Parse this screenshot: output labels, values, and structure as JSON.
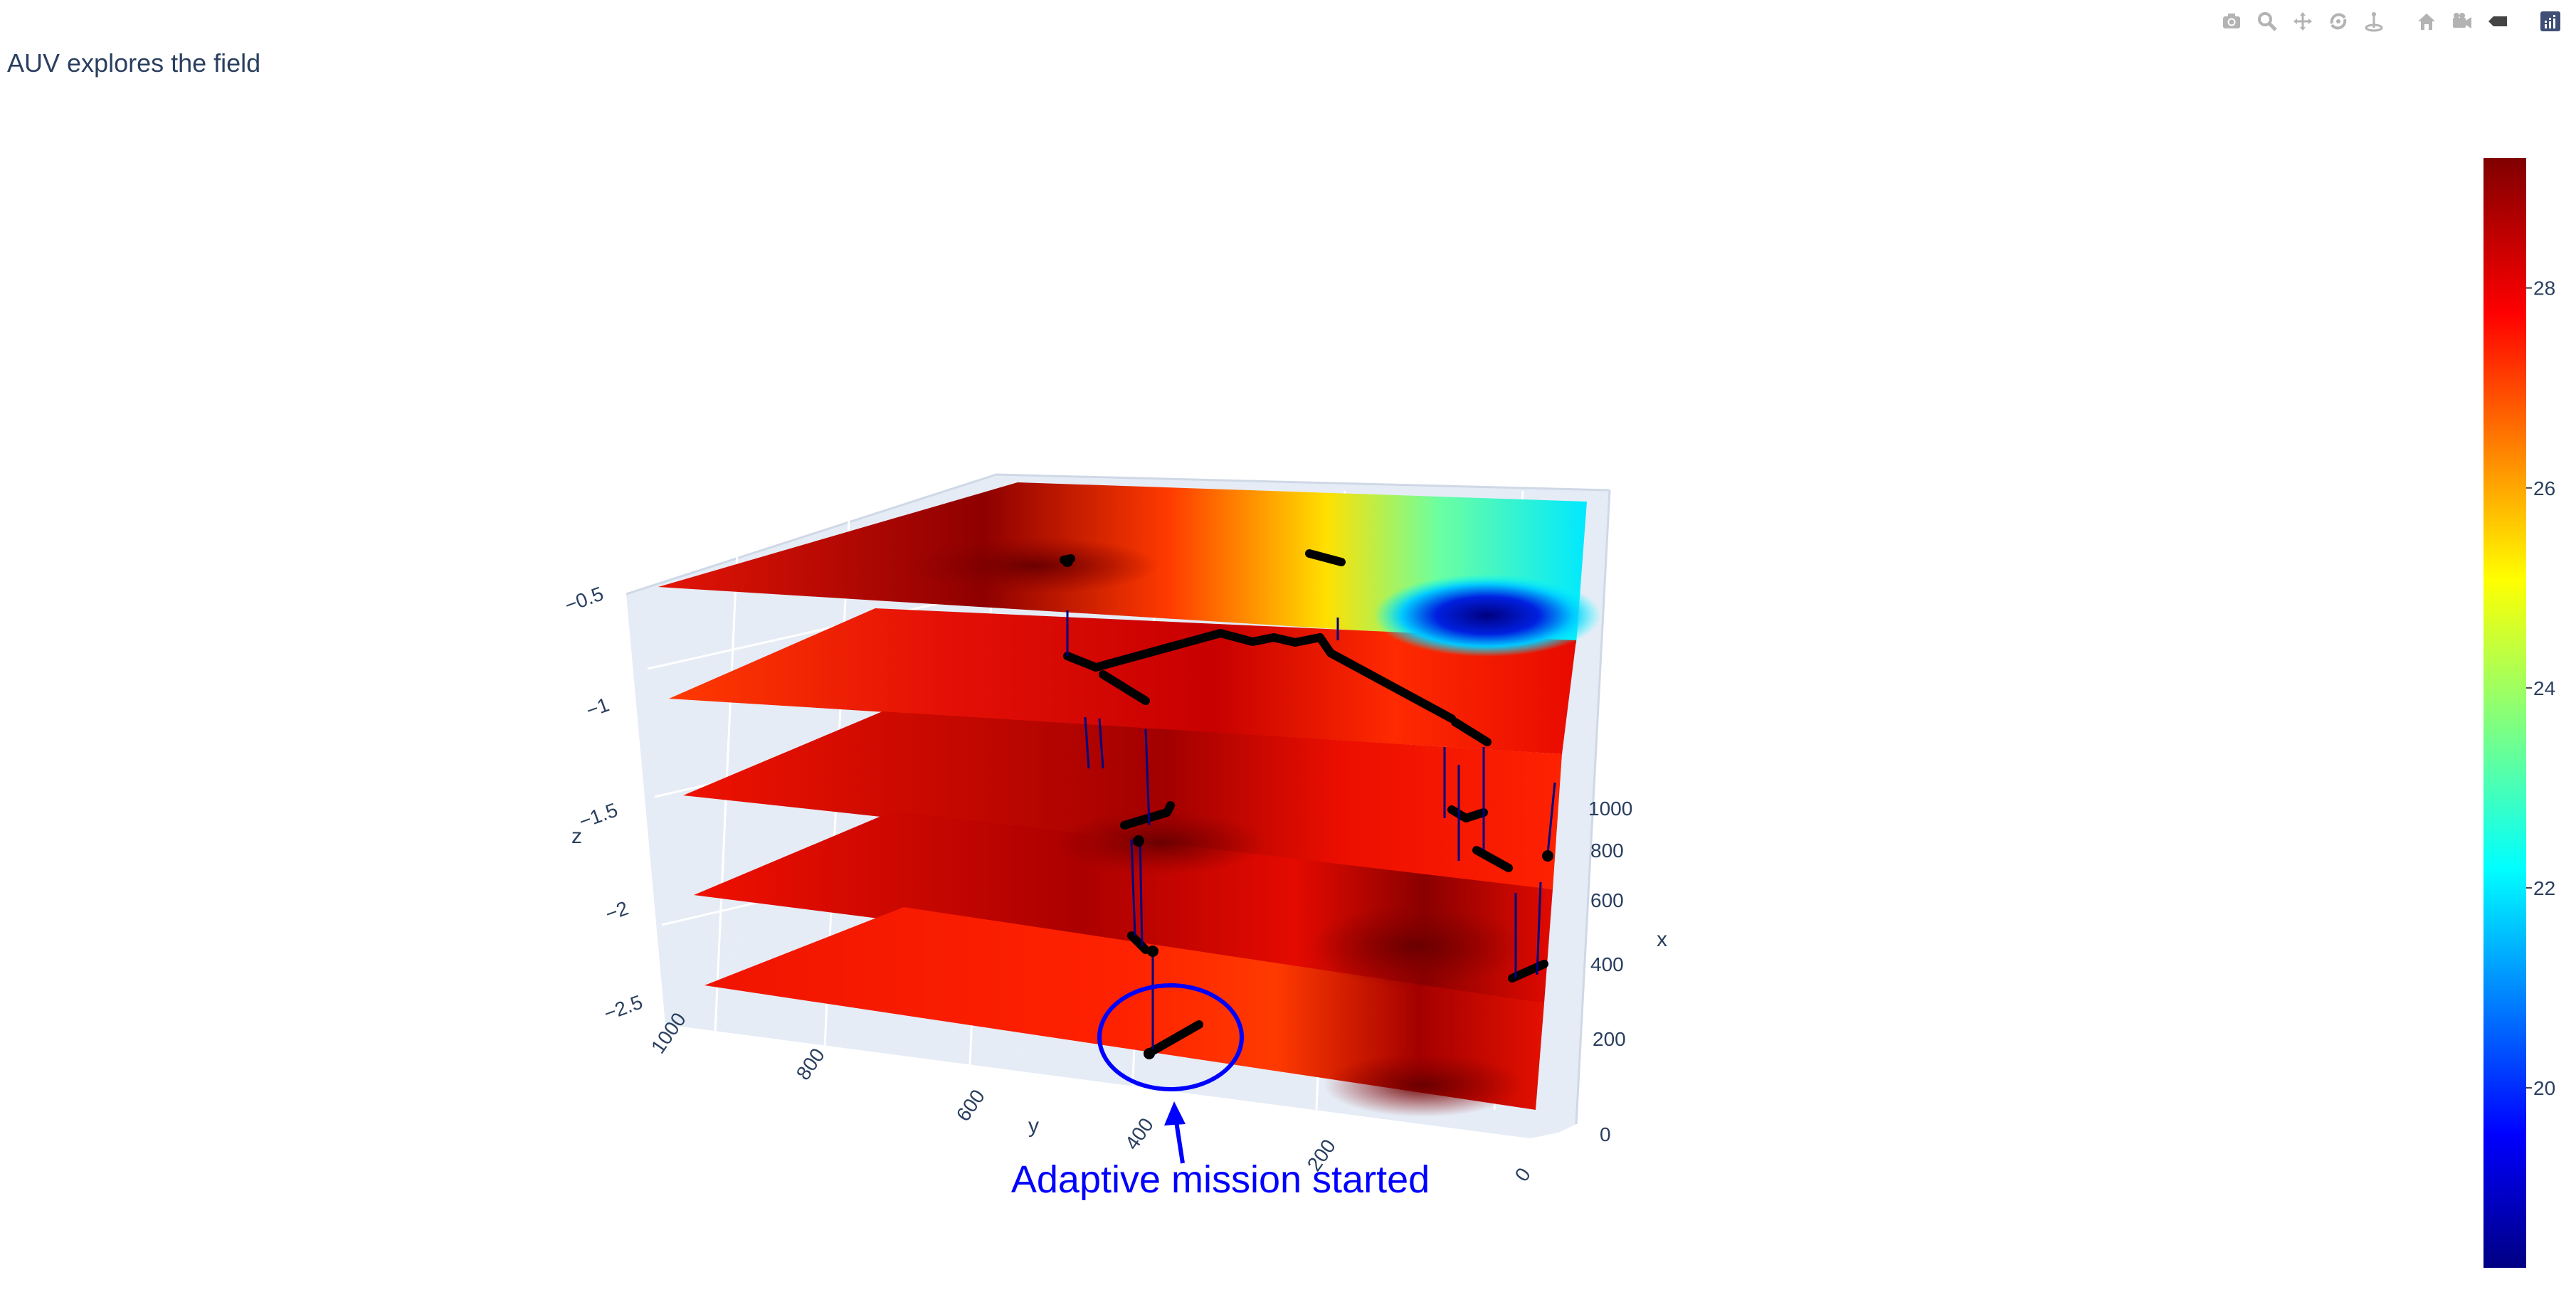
{
  "toolbar": {
    "buttons": [
      {
        "icon": "camera-icon",
        "label": "Download plot as a png"
      },
      {
        "icon": "zoom-icon",
        "label": "Zoom"
      },
      {
        "icon": "pan-icon",
        "label": "Pan"
      },
      {
        "icon": "orbit-rotation-icon",
        "label": "Orbital rotation"
      },
      {
        "icon": "turntable-rotation-icon",
        "label": "Turntable rotation"
      },
      {
        "icon": "home-icon",
        "label": "Reset camera to default"
      },
      {
        "icon": "camera-view-icon",
        "label": "Reset camera to last save"
      },
      {
        "icon": "hover-tag-icon",
        "label": "Toggle show closest data on hover"
      },
      {
        "icon": "plotly-logo-icon",
        "label": "Produced with Plotly"
      }
    ]
  },
  "chart_data": {
    "type": "surface",
    "title": "AUV explores the field",
    "scene": {
      "x": {
        "label": "x",
        "ticks": [
          "0",
          "200",
          "400",
          "600",
          "800",
          "1000"
        ]
      },
      "y": {
        "label": "y",
        "ticks": [
          "1000",
          "800",
          "600",
          "400",
          "200",
          "0"
        ]
      },
      "z": {
        "label": "z",
        "ticks": [
          "−0.5",
          "−1",
          "−1.5",
          "−2",
          "−2.5"
        ]
      }
    },
    "layers_z": [
      -0.5,
      -1.0,
      -1.5,
      -2.0,
      -2.5
    ],
    "colorbar": {
      "ticks": [
        "28",
        "26",
        "24",
        "22",
        "20"
      ],
      "tick_values": [
        28,
        26,
        24,
        22,
        20
      ],
      "range": [
        18.2,
        29.3
      ],
      "colorscale": "Jet"
    },
    "annotation": {
      "text": "Adaptive mission started",
      "color": "#0000ff"
    }
  }
}
